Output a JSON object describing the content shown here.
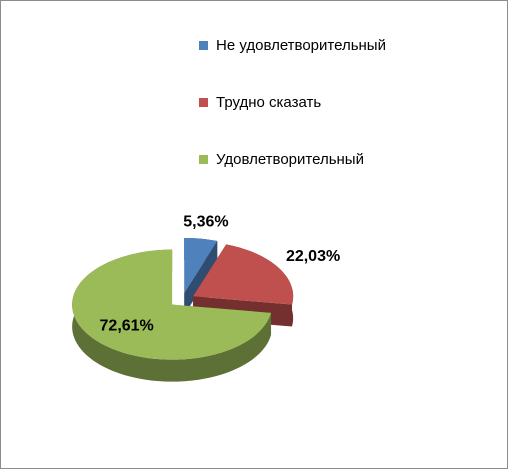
{
  "chart_data": {
    "type": "pie",
    "categories": [
      "Не удовлетворительный",
      "Трудно сказать",
      "Удовлетворительный"
    ],
    "values": [
      5.36,
      22.03,
      72.61
    ],
    "value_labels": [
      "5,36%",
      "22,03%",
      "72,61%"
    ],
    "colors": [
      "#4f81bd",
      "#c0504d",
      "#9bbb59"
    ],
    "legend": "top-right"
  }
}
